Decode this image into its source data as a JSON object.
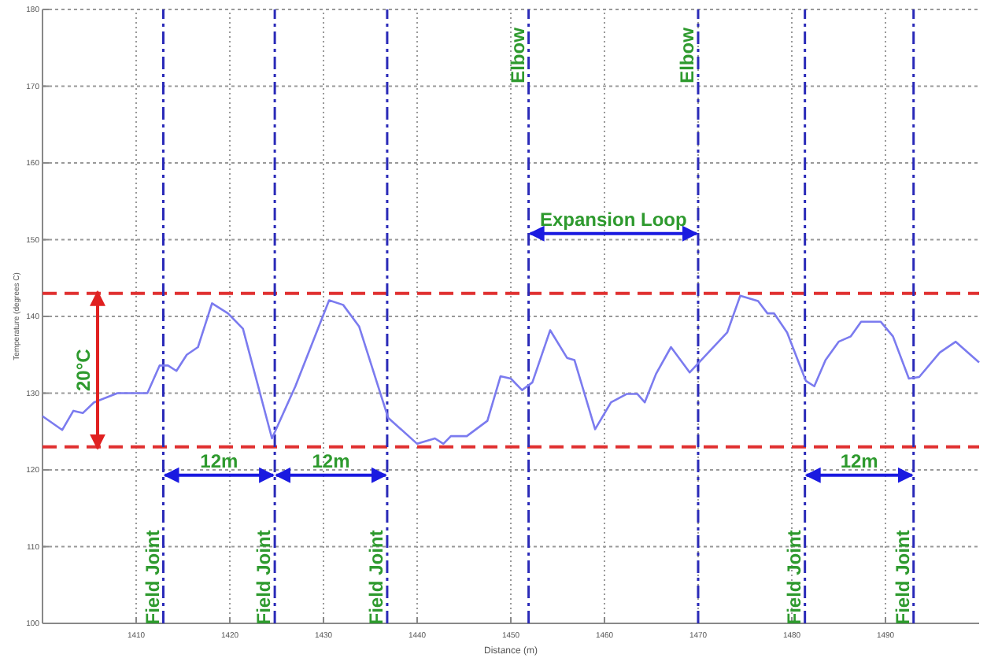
{
  "chart_data": {
    "type": "line",
    "xlabel": "Distance (m)",
    "ylabel": "Temperature (degrees C)",
    "xlim": [
      1400,
      1500
    ],
    "xticks": [
      1410,
      1420,
      1430,
      1440,
      1450,
      1460,
      1470,
      1480,
      1490
    ],
    "ylim": [
      100,
      180
    ],
    "yticks": [
      100,
      110,
      120,
      130,
      140,
      150,
      160,
      170,
      180
    ],
    "grid": true,
    "series": [
      {
        "color": "#7b7bef",
        "x": [
          1400,
          1402.1,
          1403.3,
          1404.3,
          1405.5,
          1408,
          1410,
          1411.2,
          1412.5,
          1413.4,
          1414.3,
          1415.4,
          1416.6,
          1418.1,
          1419.8,
          1421.4,
          1424.5,
          1427,
          1430.6,
          1432.1,
          1433.8,
          1436.9,
          1440,
          1441.9,
          1442.8,
          1443.6,
          1445.3,
          1447.5,
          1448.9,
          1450,
          1451.2,
          1452.3,
          1454.2,
          1456,
          1456.8,
          1459,
          1460.7,
          1462.4,
          1463.5,
          1464.3,
          1465.5,
          1467.1,
          1469.1,
          1473.1,
          1474.5,
          1476.4,
          1477.4,
          1478.1,
          1479.5,
          1481.5,
          1482.4,
          1483.6,
          1485,
          1486.3,
          1487.4,
          1489.5,
          1490.8,
          1492.5,
          1493.6,
          1495.8,
          1497.5,
          1500
        ],
        "values": [
          127,
          125.2,
          127.7,
          127.4,
          128.8,
          130,
          130,
          130,
          133.6,
          133.6,
          132.9,
          135,
          136,
          141.7,
          140.4,
          138.4,
          124.1,
          130.9,
          142.1,
          141.5,
          138.7,
          126.8,
          123.4,
          124.1,
          123.4,
          124.4,
          124.4,
          126.4,
          132.2,
          131.9,
          130.4,
          131.4,
          138.2,
          134.6,
          134.3,
          125.3,
          128.8,
          129.9,
          129.9,
          128.8,
          132.5,
          136,
          132.7,
          137.9,
          142.7,
          142,
          140.4,
          140.4,
          137.9,
          131.6,
          130.9,
          134.3,
          136.7,
          137.4,
          139.3,
          139.3,
          137.4,
          131.9,
          132.1,
          135.3,
          136.7,
          134
        ]
      }
    ],
    "ref_lines": [
      {
        "axis": "y",
        "value": 143,
        "color": "#e03030",
        "line_style": "dashed"
      },
      {
        "axis": "y",
        "value": 123,
        "color": "#e03030",
        "line_style": "dashed"
      },
      {
        "axis": "x",
        "value": 1412.9,
        "color": "#2a2ab8"
      },
      {
        "axis": "x",
        "value": 1424.8,
        "color": "#2a2ab8"
      },
      {
        "axis": "x",
        "value": 1436.8,
        "color": "#2a2ab8"
      },
      {
        "axis": "x",
        "value": 1451.9,
        "color": "#2a2ab8"
      },
      {
        "axis": "x",
        "value": 1470,
        "color": "#2a2ab8"
      },
      {
        "axis": "x",
        "value": 1481.4,
        "color": "#2a2ab8"
      },
      {
        "axis": "x",
        "value": 1493,
        "color": "#2a2ab8"
      }
    ],
    "annotations": [
      "20°C",
      "12m",
      "12m",
      "12m",
      "Expansion Loop",
      {
        "text": "Field Joint",
        "x": 1412.9,
        "y": 106
      },
      {
        "text": "Field Joint",
        "x": 1424.8,
        "y": 106
      },
      {
        "text": "Field Joint",
        "x": 1436.8,
        "y": 106
      },
      {
        "text": "Field Joint",
        "x": 1481.4,
        "y": 106
      },
      {
        "text": "Field Joint",
        "x": 1493,
        "y": 106
      },
      {
        "text": "Elbow",
        "x": 1451.9,
        "y": 174
      },
      {
        "text": "Elbow",
        "x": 1470,
        "y": 174
      }
    ]
  }
}
